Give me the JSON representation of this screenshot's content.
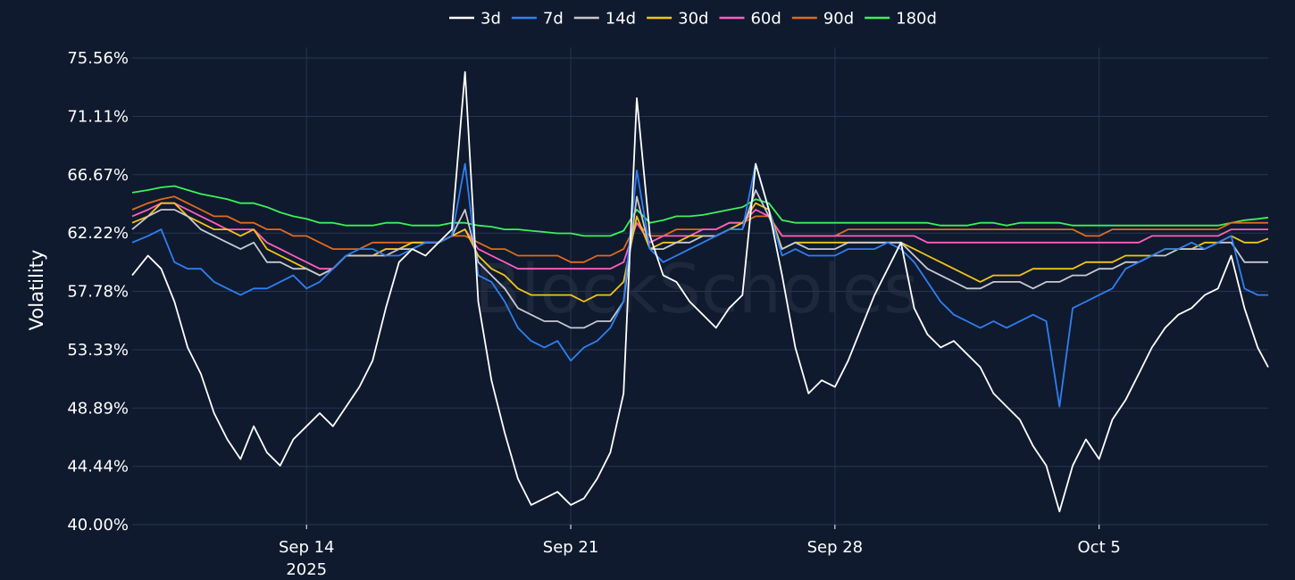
{
  "chart_data": {
    "type": "line",
    "title": "",
    "xlabel": "",
    "ylabel": "Volatility",
    "watermark": "BlockScholes",
    "legend_position": "top-center",
    "background": "#0f1a2e",
    "grid": true,
    "ylim": [
      40.0,
      75.56
    ],
    "yticks": [
      {
        "value": 40.0,
        "label": "40.00%"
      },
      {
        "value": 44.44,
        "label": "44.44%"
      },
      {
        "value": 48.89,
        "label": "48.89%"
      },
      {
        "value": 53.33,
        "label": "53.33%"
      },
      {
        "value": 57.78,
        "label": "57.78%"
      },
      {
        "value": 62.22,
        "label": "62.22%"
      },
      {
        "value": 66.67,
        "label": "66.67%"
      },
      {
        "value": 71.11,
        "label": "71.11%"
      },
      {
        "value": 75.56,
        "label": "75.56%"
      }
    ],
    "xlim": [
      -4.6,
      38.4
    ],
    "xticks": [
      {
        "value": 2,
        "label": "Sep 14",
        "sublabel": "2025"
      },
      {
        "value": 12,
        "label": "Sep 21",
        "sublabel": ""
      },
      {
        "value": 22,
        "label": "Sep 28",
        "sublabel": ""
      },
      {
        "value": 32,
        "label": "Oct 5",
        "sublabel": ""
      }
    ],
    "x_units": "days since Sep 12, 2025",
    "x": [
      -4.6,
      -4.0,
      -3.5,
      -3.0,
      -2.5,
      -2.0,
      -1.5,
      -1.0,
      -0.5,
      0.0,
      0.5,
      1.0,
      1.5,
      2.0,
      2.5,
      3.0,
      3.5,
      4.0,
      4.5,
      5.0,
      5.5,
      6.0,
      6.5,
      7.0,
      7.5,
      8.0,
      8.5,
      9.0,
      9.5,
      10.0,
      10.5,
      11.0,
      11.5,
      12.0,
      12.5,
      13.0,
      13.5,
      14.0,
      14.5,
      15.0,
      15.5,
      16.0,
      16.5,
      17.0,
      17.5,
      18.0,
      18.5,
      19.0,
      19.5,
      20.0,
      20.5,
      21.0,
      21.5,
      22.0,
      22.5,
      23.0,
      23.5,
      24.0,
      24.5,
      25.0,
      25.5,
      26.0,
      26.5,
      27.0,
      27.5,
      28.0,
      28.5,
      29.0,
      29.5,
      30.0,
      30.5,
      31.0,
      31.5,
      32.0,
      32.5,
      33.0,
      33.5,
      34.0,
      34.5,
      35.0,
      35.5,
      36.0,
      36.5,
      37.0,
      37.5,
      38.0,
      38.4
    ],
    "series": [
      {
        "name": "3d",
        "color": "#ffffff",
        "width": 1.8,
        "values": [
          59.0,
          60.5,
          59.5,
          57.0,
          53.5,
          51.5,
          48.5,
          46.5,
          45.0,
          47.5,
          45.5,
          44.5,
          46.5,
          47.5,
          48.5,
          47.5,
          49.0,
          50.5,
          52.5,
          56.5,
          60.0,
          61.0,
          60.5,
          61.5,
          62.5,
          74.5,
          57.0,
          51.0,
          47.0,
          43.5,
          41.5,
          42.0,
          42.5,
          41.5,
          42.0,
          43.5,
          45.5,
          50.0,
          72.5,
          62.0,
          59.0,
          58.5,
          57.0,
          56.0,
          55.0,
          56.5,
          57.5,
          67.5,
          64.0,
          59.0,
          53.5,
          50.0,
          51.0,
          50.5,
          52.5,
          55.0,
          57.5,
          59.5,
          61.5,
          56.5,
          54.5,
          53.5,
          54.0,
          53.0,
          52.0,
          50.0,
          49.0,
          48.0,
          46.0,
          44.5,
          41.0,
          44.5,
          46.5,
          45.0,
          48.0,
          49.5,
          51.5,
          53.5,
          55.0,
          56.0,
          56.5,
          57.5,
          58.0,
          60.5,
          56.5,
          53.5,
          52.0
        ]
      },
      {
        "name": "7d",
        "color": "#2f7ff2",
        "width": 1.8,
        "values": [
          61.5,
          62.0,
          62.5,
          60.0,
          59.5,
          59.5,
          58.5,
          58.0,
          57.5,
          58.0,
          58.0,
          58.5,
          59.0,
          58.0,
          58.5,
          59.5,
          60.5,
          61.0,
          61.0,
          60.5,
          60.5,
          61.0,
          61.5,
          61.5,
          62.0,
          67.5,
          59.0,
          58.5,
          57.0,
          55.0,
          54.0,
          53.5,
          54.0,
          52.5,
          53.5,
          54.0,
          55.0,
          57.0,
          67.0,
          61.0,
          60.0,
          60.5,
          61.0,
          61.5,
          62.0,
          62.5,
          62.5,
          67.5,
          64.0,
          60.5,
          61.0,
          60.5,
          60.5,
          60.5,
          61.0,
          61.0,
          61.0,
          61.5,
          61.0,
          60.0,
          58.5,
          57.0,
          56.0,
          55.5,
          55.0,
          55.5,
          55.0,
          55.5,
          56.0,
          55.5,
          49.0,
          56.5,
          57.0,
          57.5,
          58.0,
          59.5,
          60.0,
          60.5,
          61.0,
          61.0,
          61.5,
          61.0,
          61.5,
          62.0,
          58.0,
          57.5,
          57.5
        ]
      },
      {
        "name": "14d",
        "color": "#c8c8d2",
        "width": 1.8,
        "values": [
          62.5,
          63.5,
          64.0,
          64.0,
          63.5,
          62.5,
          62.0,
          61.5,
          61.0,
          61.5,
          60.0,
          60.0,
          59.5,
          59.5,
          59.0,
          59.5,
          60.5,
          60.5,
          60.5,
          60.5,
          61.0,
          61.0,
          61.5,
          61.5,
          62.0,
          64.0,
          60.0,
          59.0,
          58.0,
          56.5,
          56.0,
          55.5,
          55.5,
          55.0,
          55.0,
          55.5,
          55.5,
          57.0,
          65.0,
          61.0,
          61.0,
          61.5,
          61.5,
          62.0,
          62.0,
          62.5,
          62.5,
          65.5,
          63.5,
          61.0,
          61.5,
          61.0,
          61.0,
          61.0,
          61.5,
          61.5,
          61.5,
          61.5,
          61.5,
          60.5,
          59.5,
          59.0,
          58.5,
          58.0,
          58.0,
          58.5,
          58.5,
          58.5,
          58.0,
          58.5,
          58.5,
          59.0,
          59.0,
          59.5,
          59.5,
          60.0,
          60.0,
          60.5,
          60.5,
          61.0,
          61.0,
          61.0,
          61.5,
          61.5,
          60.0,
          60.0,
          60.0
        ]
      },
      {
        "name": "30d",
        "color": "#f2c417",
        "width": 1.8,
        "values": [
          63.0,
          63.5,
          64.5,
          64.5,
          63.5,
          63.0,
          62.5,
          62.5,
          62.0,
          62.5,
          61.0,
          60.5,
          60.0,
          59.5,
          59.0,
          59.5,
          60.5,
          60.5,
          60.5,
          61.0,
          61.0,
          61.5,
          61.5,
          61.5,
          62.0,
          62.5,
          60.5,
          59.5,
          59.0,
          58.0,
          57.5,
          57.5,
          57.5,
          57.5,
          57.0,
          57.5,
          57.5,
          58.5,
          63.5,
          61.0,
          61.5,
          61.5,
          62.0,
          62.0,
          62.0,
          62.5,
          63.0,
          64.5,
          64.0,
          61.0,
          61.5,
          61.5,
          61.5,
          61.5,
          61.5,
          61.5,
          61.5,
          61.5,
          61.5,
          61.0,
          60.5,
          60.0,
          59.5,
          59.0,
          58.5,
          59.0,
          59.0,
          59.0,
          59.5,
          59.5,
          59.5,
          59.5,
          60.0,
          60.0,
          60.0,
          60.5,
          60.5,
          60.5,
          61.0,
          61.0,
          61.0,
          61.5,
          61.5,
          62.0,
          61.5,
          61.5,
          61.8
        ]
      },
      {
        "name": "60d",
        "color": "#ff5fbf",
        "width": 1.8,
        "values": [
          63.5,
          64.0,
          64.5,
          64.5,
          64.0,
          63.5,
          63.0,
          62.5,
          62.5,
          62.5,
          61.5,
          61.0,
          60.5,
          60.0,
          59.5,
          59.5,
          60.5,
          60.5,
          60.5,
          61.0,
          61.0,
          61.5,
          61.5,
          61.5,
          62.0,
          62.5,
          61.0,
          60.5,
          60.0,
          59.5,
          59.5,
          59.5,
          59.5,
          59.5,
          59.5,
          59.5,
          59.5,
          60.0,
          63.0,
          61.5,
          62.0,
          62.0,
          62.0,
          62.5,
          62.5,
          63.0,
          63.0,
          64.0,
          63.5,
          62.0,
          62.0,
          62.0,
          62.0,
          62.0,
          62.0,
          62.0,
          62.0,
          62.0,
          62.0,
          62.0,
          61.5,
          61.5,
          61.5,
          61.5,
          61.5,
          61.5,
          61.5,
          61.5,
          61.5,
          61.5,
          61.5,
          61.5,
          61.5,
          61.5,
          61.5,
          61.5,
          61.5,
          62.0,
          62.0,
          62.0,
          62.0,
          62.0,
          62.0,
          62.5,
          62.5,
          62.5,
          62.5
        ]
      },
      {
        "name": "90d",
        "color": "#e06a1f",
        "width": 1.8,
        "values": [
          64.0,
          64.5,
          64.8,
          65.0,
          64.5,
          64.0,
          63.5,
          63.5,
          63.0,
          63.0,
          62.5,
          62.5,
          62.0,
          62.0,
          61.5,
          61.0,
          61.0,
          61.0,
          61.5,
          61.5,
          61.5,
          61.5,
          61.5,
          61.5,
          62.0,
          62.0,
          61.5,
          61.0,
          61.0,
          60.5,
          60.5,
          60.5,
          60.5,
          60.0,
          60.0,
          60.5,
          60.5,
          61.0,
          63.0,
          62.0,
          62.0,
          62.5,
          62.5,
          62.5,
          62.5,
          63.0,
          63.0,
          63.5,
          63.5,
          62.0,
          62.0,
          62.0,
          62.0,
          62.0,
          62.5,
          62.5,
          62.5,
          62.5,
          62.5,
          62.5,
          62.5,
          62.5,
          62.5,
          62.5,
          62.5,
          62.5,
          62.5,
          62.5,
          62.5,
          62.5,
          62.5,
          62.5,
          62.0,
          62.0,
          62.5,
          62.5,
          62.5,
          62.5,
          62.5,
          62.5,
          62.5,
          62.5,
          62.5,
          63.0,
          63.0,
          63.0,
          63.0
        ]
      },
      {
        "name": "180d",
        "color": "#3cf05a",
        "width": 1.8,
        "values": [
          65.3,
          65.5,
          65.7,
          65.8,
          65.5,
          65.2,
          65.0,
          64.8,
          64.5,
          64.5,
          64.2,
          63.8,
          63.5,
          63.3,
          63.0,
          63.0,
          62.8,
          62.8,
          62.8,
          63.0,
          63.0,
          62.8,
          62.8,
          62.8,
          63.0,
          63.0,
          62.8,
          62.7,
          62.5,
          62.5,
          62.4,
          62.3,
          62.2,
          62.2,
          62.0,
          62.0,
          62.0,
          62.4,
          64.0,
          63.0,
          63.2,
          63.5,
          63.5,
          63.6,
          63.8,
          64.0,
          64.2,
          64.8,
          64.5,
          63.2,
          63.0,
          63.0,
          63.0,
          63.0,
          63.0,
          63.0,
          63.0,
          63.0,
          63.0,
          63.0,
          63.0,
          62.8,
          62.8,
          62.8,
          63.0,
          63.0,
          62.8,
          63.0,
          63.0,
          63.0,
          63.0,
          62.8,
          62.8,
          62.8,
          62.8,
          62.8,
          62.8,
          62.8,
          62.8,
          62.8,
          62.8,
          62.8,
          62.8,
          63.0,
          63.2,
          63.3,
          63.4
        ]
      }
    ]
  }
}
